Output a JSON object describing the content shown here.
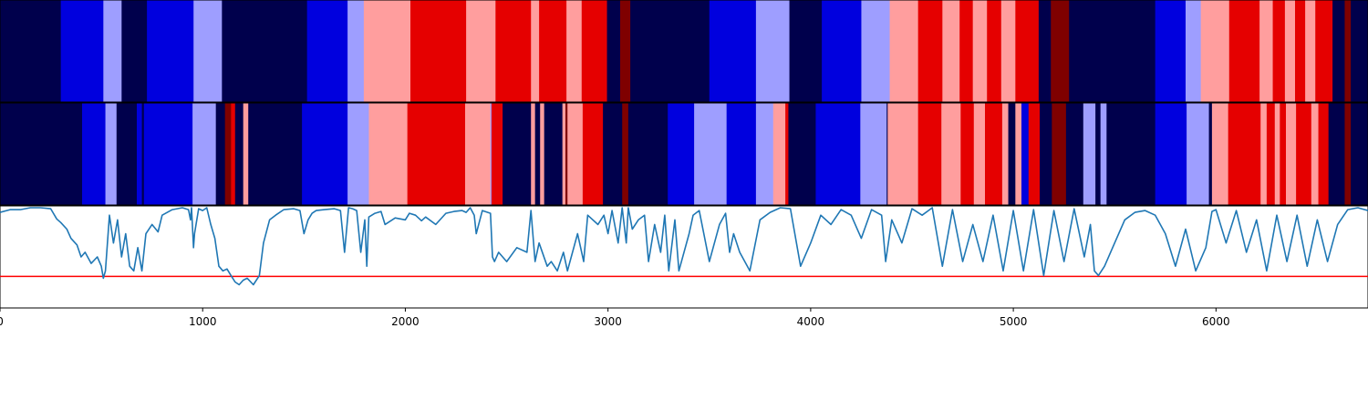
{
  "palette": {
    "dark_navy": "#00004c",
    "blue": "#0000de",
    "light_blue": "#9e9eff",
    "light_red": "#ff9e9e",
    "red": "#e50000",
    "dark_red": "#7f0000",
    "signal_line": "#1f77b4",
    "threshold_line": "#ff0000"
  },
  "chart_data": {
    "type": "heatmap",
    "xlim": [
      0,
      6750
    ],
    "x_ticks": [
      "0",
      "1000",
      "2000",
      "3000",
      "4000",
      "5000",
      "6000"
    ],
    "x_tick_values": [
      0,
      1000,
      2000,
      3000,
      4000,
      5000,
      6000
    ],
    "ylim": [
      -0.1,
      1.0
    ],
    "threshold": 0.24,
    "grid": false,
    "legend": "none",
    "tracks": [
      {
        "segments": [
          [
            0,
            300,
            "dark_navy"
          ],
          [
            300,
            510,
            "blue"
          ],
          [
            510,
            600,
            "light_blue"
          ],
          [
            600,
            725,
            "dark_navy"
          ],
          [
            725,
            955,
            "blue"
          ],
          [
            955,
            1095,
            "light_blue"
          ],
          [
            1095,
            1515,
            "dark_navy"
          ],
          [
            1515,
            1715,
            "blue"
          ],
          [
            1715,
            1795,
            "light_blue"
          ],
          [
            1795,
            2025,
            "light_red"
          ],
          [
            2025,
            2300,
            "red"
          ],
          [
            2300,
            2445,
            "light_red"
          ],
          [
            2445,
            2620,
            "red"
          ],
          [
            2620,
            2660,
            "light_red"
          ],
          [
            2660,
            2795,
            "red"
          ],
          [
            2795,
            2870,
            "light_red"
          ],
          [
            2870,
            2995,
            "red"
          ],
          [
            2995,
            3060,
            "dark_navy"
          ],
          [
            3060,
            3110,
            "dark_red"
          ],
          [
            3110,
            3500,
            "dark_navy"
          ],
          [
            3500,
            3730,
            "blue"
          ],
          [
            3730,
            3895,
            "light_blue"
          ],
          [
            3895,
            4055,
            "dark_navy"
          ],
          [
            4055,
            4250,
            "blue"
          ],
          [
            4250,
            4390,
            "light_blue"
          ],
          [
            4390,
            4530,
            "light_red"
          ],
          [
            4530,
            4650,
            "red"
          ],
          [
            4650,
            4735,
            "light_red"
          ],
          [
            4735,
            4800,
            "red"
          ],
          [
            4800,
            4870,
            "light_red"
          ],
          [
            4870,
            4940,
            "red"
          ],
          [
            4940,
            5010,
            "light_red"
          ],
          [
            5010,
            5125,
            "red"
          ],
          [
            5125,
            5185,
            "dark_navy"
          ],
          [
            5185,
            5275,
            "dark_red"
          ],
          [
            5275,
            5700,
            "dark_navy"
          ],
          [
            5700,
            5850,
            "blue"
          ],
          [
            5850,
            5925,
            "light_blue"
          ],
          [
            5925,
            6065,
            "light_red"
          ],
          [
            6065,
            6215,
            "red"
          ],
          [
            6215,
            6280,
            "light_red"
          ],
          [
            6280,
            6340,
            "red"
          ],
          [
            6340,
            6390,
            "light_red"
          ],
          [
            6390,
            6440,
            "red"
          ],
          [
            6440,
            6490,
            "light_red"
          ],
          [
            6490,
            6575,
            "red"
          ],
          [
            6575,
            6635,
            "dark_navy"
          ],
          [
            6635,
            6665,
            "dark_red"
          ],
          [
            6665,
            6750,
            "dark_navy"
          ]
        ]
      },
      {
        "segments": [
          [
            0,
            405,
            "dark_navy"
          ],
          [
            405,
            520,
            "blue"
          ],
          [
            520,
            575,
            "light_blue"
          ],
          [
            575,
            675,
            "dark_navy"
          ],
          [
            675,
            700,
            "blue"
          ],
          [
            700,
            710,
            "dark_navy"
          ],
          [
            710,
            950,
            "blue"
          ],
          [
            950,
            1065,
            "light_blue"
          ],
          [
            1065,
            1110,
            "dark_navy"
          ],
          [
            1110,
            1140,
            "dark_red"
          ],
          [
            1140,
            1160,
            "red"
          ],
          [
            1160,
            1200,
            "dark_navy"
          ],
          [
            1200,
            1225,
            "light_red"
          ],
          [
            1225,
            1490,
            "dark_navy"
          ],
          [
            1490,
            1715,
            "blue"
          ],
          [
            1715,
            1820,
            "light_blue"
          ],
          [
            1820,
            2010,
            "light_red"
          ],
          [
            2010,
            2295,
            "red"
          ],
          [
            2295,
            2420,
            "light_red"
          ],
          [
            2420,
            2425,
            "light_blue"
          ],
          [
            2425,
            2480,
            "red"
          ],
          [
            2480,
            2620,
            "dark_navy"
          ],
          [
            2620,
            2640,
            "light_red"
          ],
          [
            2640,
            2665,
            "dark_navy"
          ],
          [
            2665,
            2685,
            "light_red"
          ],
          [
            2685,
            2775,
            "dark_navy"
          ],
          [
            2775,
            2790,
            "light_red"
          ],
          [
            2790,
            2800,
            "dark_red"
          ],
          [
            2800,
            2875,
            "light_red"
          ],
          [
            2875,
            2975,
            "red"
          ],
          [
            2975,
            3070,
            "dark_navy"
          ],
          [
            3070,
            3100,
            "dark_red"
          ],
          [
            3100,
            3295,
            "dark_navy"
          ],
          [
            3295,
            3425,
            "blue"
          ],
          [
            3425,
            3585,
            "light_blue"
          ],
          [
            3585,
            3730,
            "blue"
          ],
          [
            3730,
            3815,
            "light_blue"
          ],
          [
            3815,
            3875,
            "light_red"
          ],
          [
            3875,
            3890,
            "red"
          ],
          [
            3890,
            4025,
            "dark_navy"
          ],
          [
            4025,
            4245,
            "blue"
          ],
          [
            4245,
            4375,
            "light_blue"
          ],
          [
            4375,
            4380,
            "dark_navy"
          ],
          [
            4380,
            4530,
            "light_red"
          ],
          [
            4530,
            4645,
            "red"
          ],
          [
            4645,
            4740,
            "light_red"
          ],
          [
            4740,
            4805,
            "red"
          ],
          [
            4805,
            4860,
            "light_red"
          ],
          [
            4860,
            4945,
            "red"
          ],
          [
            4945,
            4975,
            "light_red"
          ],
          [
            4975,
            5010,
            "dark_navy"
          ],
          [
            5010,
            5040,
            "light_red"
          ],
          [
            5040,
            5075,
            "blue"
          ],
          [
            5075,
            5130,
            "red"
          ],
          [
            5130,
            5190,
            "dark_navy"
          ],
          [
            5190,
            5260,
            "dark_red"
          ],
          [
            5260,
            5345,
            "dark_navy"
          ],
          [
            5345,
            5405,
            "light_blue"
          ],
          [
            5405,
            5430,
            "dark_navy"
          ],
          [
            5430,
            5460,
            "light_blue"
          ],
          [
            5460,
            5700,
            "dark_navy"
          ],
          [
            5700,
            5855,
            "blue"
          ],
          [
            5855,
            5965,
            "light_blue"
          ],
          [
            5965,
            5980,
            "dark_navy"
          ],
          [
            5980,
            6060,
            "light_red"
          ],
          [
            6060,
            6220,
            "red"
          ],
          [
            6220,
            6250,
            "light_red"
          ],
          [
            6250,
            6290,
            "red"
          ],
          [
            6290,
            6315,
            "light_red"
          ],
          [
            6315,
            6345,
            "red"
          ],
          [
            6345,
            6395,
            "light_red"
          ],
          [
            6395,
            6470,
            "red"
          ],
          [
            6470,
            6505,
            "light_red"
          ],
          [
            6505,
            6555,
            "red"
          ],
          [
            6555,
            6635,
            "dark_navy"
          ],
          [
            6635,
            6665,
            "dark_red"
          ],
          [
            6665,
            6750,
            "dark_navy"
          ]
        ]
      }
    ],
    "line_series": {
      "x": [
        0,
        50,
        100,
        150,
        200,
        250,
        280,
        300,
        330,
        350,
        380,
        400,
        420,
        450,
        480,
        500,
        510,
        520,
        540,
        560,
        580,
        600,
        620,
        640,
        660,
        680,
        700,
        720,
        750,
        780,
        800,
        850,
        900,
        930,
        940,
        945,
        955,
        960,
        980,
        1000,
        1020,
        1040,
        1060,
        1080,
        1100,
        1120,
        1140,
        1160,
        1180,
        1200,
        1220,
        1250,
        1280,
        1300,
        1330,
        1360,
        1400,
        1450,
        1480,
        1500,
        1520,
        1540,
        1560,
        1600,
        1650,
        1680,
        1700,
        1720,
        1740,
        1760,
        1780,
        1800,
        1810,
        1820,
        1850,
        1880,
        1900,
        1950,
        2000,
        2020,
        2050,
        2080,
        2100,
        2150,
        2200,
        2240,
        2280,
        2300,
        2320,
        2340,
        2350,
        2380,
        2420,
        2430,
        2440,
        2460,
        2500,
        2550,
        2600,
        2620,
        2640,
        2660,
        2700,
        2720,
        2750,
        2780,
        2800,
        2850,
        2880,
        2900,
        2950,
        2980,
        3000,
        3020,
        3050,
        3070,
        3090,
        3100,
        3120,
        3150,
        3180,
        3200,
        3230,
        3260,
        3280,
        3300,
        3330,
        3350,
        3400,
        3420,
        3450,
        3500,
        3550,
        3580,
        3600,
        3620,
        3650,
        3700,
        3750,
        3800,
        3850,
        3900,
        3950,
        4000,
        4050,
        4100,
        4150,
        4200,
        4250,
        4300,
        4350,
        4370,
        4400,
        4450,
        4500,
        4550,
        4600,
        4650,
        4700,
        4750,
        4800,
        4850,
        4900,
        4950,
        5000,
        5050,
        5100,
        5150,
        5200,
        5250,
        5300,
        5350,
        5380,
        5400,
        5420,
        5450,
        5500,
        5550,
        5600,
        5650,
        5700,
        5750,
        5800,
        5850,
        5900,
        5950,
        5980,
        6000,
        6050,
        6100,
        6150,
        6200,
        6250,
        6300,
        6350,
        6400,
        6450,
        6500,
        6550,
        6600,
        6650,
        6700,
        6750
      ],
      "y": [
        0.93,
        0.96,
        0.96,
        0.98,
        0.98,
        0.97,
        0.86,
        0.82,
        0.75,
        0.65,
        0.58,
        0.45,
        0.5,
        0.38,
        0.45,
        0.35,
        0.22,
        0.3,
        0.9,
        0.6,
        0.85,
        0.45,
        0.7,
        0.35,
        0.3,
        0.55,
        0.3,
        0.7,
        0.8,
        0.72,
        0.9,
        0.96,
        0.98,
        0.96,
        0.85,
        0.98,
        0.55,
        0.7,
        0.97,
        0.95,
        0.98,
        0.8,
        0.65,
        0.35,
        0.3,
        0.32,
        0.25,
        0.18,
        0.15,
        0.2,
        0.22,
        0.15,
        0.25,
        0.6,
        0.85,
        0.9,
        0.96,
        0.97,
        0.95,
        0.7,
        0.85,
        0.92,
        0.95,
        0.96,
        0.97,
        0.95,
        0.5,
        0.98,
        0.97,
        0.95,
        0.5,
        0.85,
        0.35,
        0.88,
        0.92,
        0.94,
        0.8,
        0.87,
        0.85,
        0.92,
        0.9,
        0.84,
        0.88,
        0.8,
        0.92,
        0.94,
        0.95,
        0.93,
        0.98,
        0.9,
        0.7,
        0.95,
        0.92,
        0.45,
        0.4,
        0.5,
        0.4,
        0.55,
        0.5,
        0.95,
        0.4,
        0.6,
        0.35,
        0.4,
        0.3,
        0.5,
        0.3,
        0.7,
        0.4,
        0.9,
        0.8,
        0.9,
        0.7,
        0.95,
        0.6,
        0.98,
        0.6,
        0.98,
        0.75,
        0.85,
        0.9,
        0.4,
        0.8,
        0.5,
        0.9,
        0.3,
        0.85,
        0.3,
        0.7,
        0.9,
        0.95,
        0.4,
        0.8,
        0.92,
        0.5,
        0.7,
        0.5,
        0.3,
        0.85,
        0.93,
        0.98,
        0.97,
        0.35,
        0.6,
        0.9,
        0.8,
        0.96,
        0.9,
        0.65,
        0.96,
        0.9,
        0.4,
        0.85,
        0.6,
        0.97,
        0.9,
        0.98,
        0.35,
        0.96,
        0.4,
        0.8,
        0.4,
        0.9,
        0.3,
        0.95,
        0.3,
        0.96,
        0.25,
        0.95,
        0.4,
        0.97,
        0.45,
        0.8,
        0.3,
        0.25,
        0.35,
        0.6,
        0.85,
        0.93,
        0.95,
        0.9,
        0.7,
        0.35,
        0.75,
        0.3,
        0.55,
        0.94,
        0.96,
        0.6,
        0.95,
        0.5,
        0.85,
        0.3,
        0.9,
        0.4,
        0.9,
        0.35,
        0.85,
        0.4,
        0.8,
        0.96,
        0.98,
        0.95,
        0.95
      ]
    }
  }
}
